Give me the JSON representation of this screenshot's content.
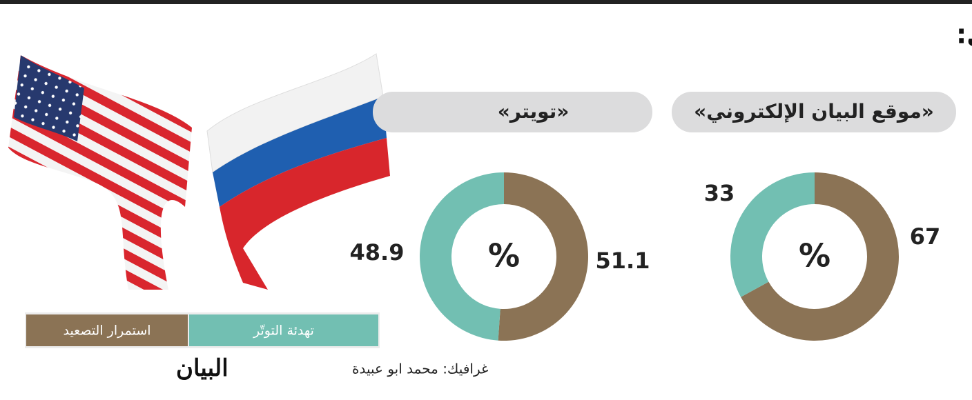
{
  "title": "قمة «بايدن - بوتين» في جنيف ستؤدي إلى:",
  "chart_data": [
    {
      "type": "donut",
      "title": "«موقع البيان الإلكتروني»",
      "center_label": "%",
      "values": [
        67,
        33
      ]
    },
    {
      "type": "donut",
      "title": "«تويتر»",
      "center_label": "%",
      "values": [
        51.1,
        48.9
      ]
    }
  ],
  "legend": {
    "labels": [
      "استمرار التصعيد",
      "تهدئة التوتّر"
    ],
    "colors": [
      "#8b7355",
      "#72bfb2"
    ]
  },
  "credit": "غرافيك: محمد ابو عبيدة",
  "logo": "البيان"
}
